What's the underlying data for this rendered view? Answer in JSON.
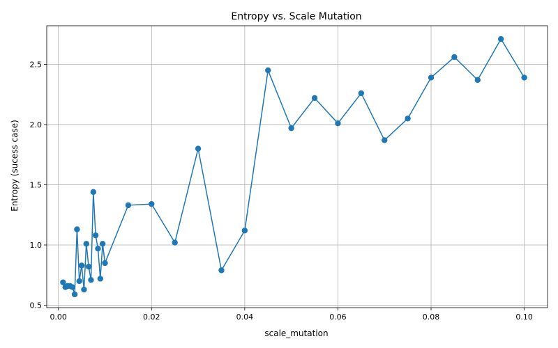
{
  "chart_data": {
    "type": "line",
    "title": "Entropy vs. Scale Mutation",
    "xlabel": "scale_mutation",
    "ylabel": "Entropy (sucess case)",
    "xlim": [
      -0.0025,
      0.105
    ],
    "ylim": [
      0.48,
      2.82
    ],
    "xticks": [
      0.0,
      0.02,
      0.04,
      0.06,
      0.08,
      0.1
    ],
    "xtick_labels": [
      "0.00",
      "0.02",
      "0.04",
      "0.06",
      "0.08",
      "0.10"
    ],
    "yticks": [
      0.5,
      1.0,
      1.5,
      2.0,
      2.5
    ],
    "ytick_labels": [
      "0.5",
      "1.0",
      "1.5",
      "2.0",
      "2.5"
    ],
    "grid": true,
    "series": [
      {
        "color": "#1f77b4",
        "marker": "circle",
        "x": [
          0.001,
          0.0015,
          0.002,
          0.0025,
          0.003,
          0.0035,
          0.004,
          0.0045,
          0.005,
          0.0055,
          0.006,
          0.0065,
          0.007,
          0.0075,
          0.008,
          0.0085,
          0.009,
          0.0095,
          0.01,
          0.015,
          0.02,
          0.025,
          0.03,
          0.035,
          0.04,
          0.045,
          0.05,
          0.055,
          0.06,
          0.065,
          0.07,
          0.075,
          0.08,
          0.085,
          0.09,
          0.095,
          0.1
        ],
        "y": [
          0.69,
          0.65,
          0.66,
          0.66,
          0.65,
          0.59,
          1.13,
          0.7,
          0.83,
          0.63,
          1.01,
          0.82,
          0.71,
          1.44,
          1.08,
          0.97,
          0.72,
          1.01,
          0.85,
          1.33,
          1.34,
          1.02,
          1.8,
          0.79,
          1.12,
          2.45,
          1.97,
          2.22,
          2.01,
          2.26,
          1.87,
          2.05,
          2.39,
          2.56,
          2.37,
          2.71,
          2.39
        ]
      }
    ]
  }
}
